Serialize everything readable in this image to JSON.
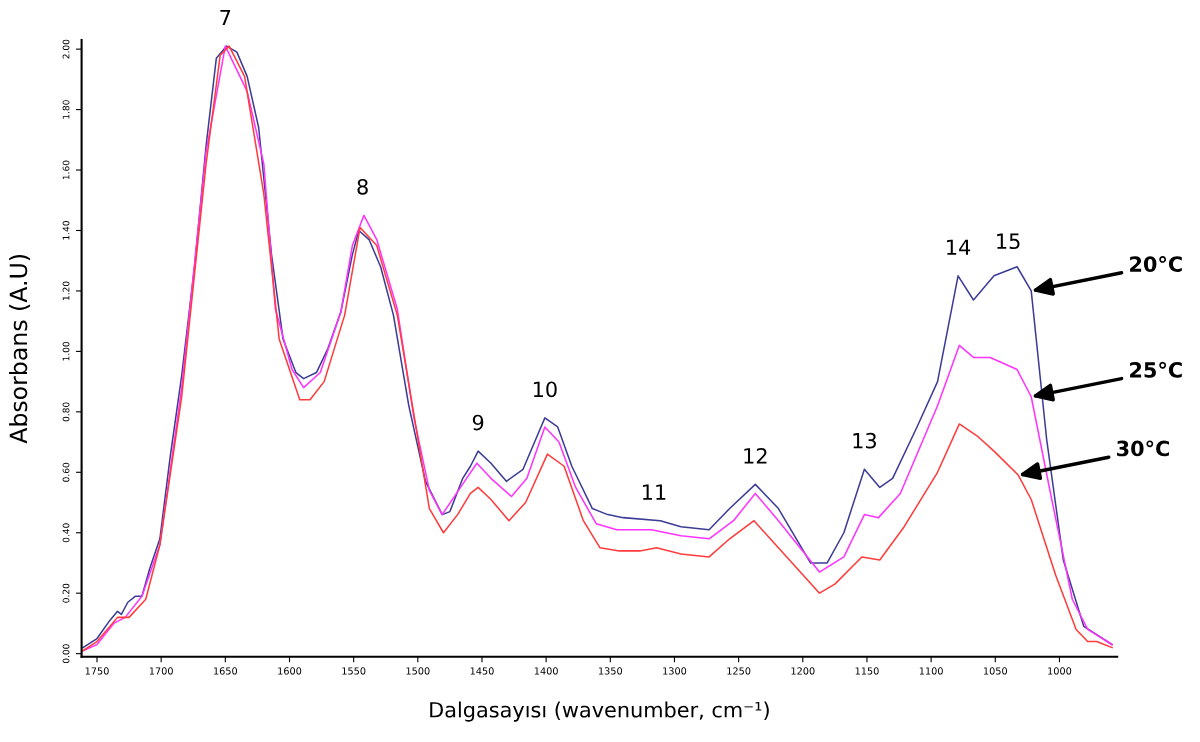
{
  "chart_data": {
    "type": "line",
    "xlabel": "Dalgasayısı (wavenumber, cm⁻¹)",
    "ylabel": "Absorbans (A.U)",
    "xlim": [
      1762,
      955
    ],
    "ylim": [
      -0.01,
      2.03
    ],
    "xticks": [
      1750,
      1700,
      1650,
      1600,
      1550,
      1500,
      1450,
      1400,
      1350,
      1300,
      1250,
      1200,
      1150,
      1100,
      1050,
      1000
    ],
    "yticks": [
      {
        "value": 0,
        "label": "0.00"
      },
      {
        "value": 0.2,
        "label": "0.20"
      },
      {
        "value": 0.4,
        "label": "0.40"
      },
      {
        "value": 0.6,
        "label": "0.60"
      },
      {
        "value": 0.8,
        "label": "0.80"
      },
      {
        "value": 1.0,
        "label": "1.00"
      },
      {
        "value": 1.2,
        "label": "1.20"
      },
      {
        "value": 1.4,
        "label": "1.40"
      },
      {
        "value": 1.6,
        "label": "1.60"
      },
      {
        "value": 1.8,
        "label": "1.80"
      },
      {
        "value": 2.0,
        "label": "2.00"
      }
    ],
    "grid": false,
    "legend": false,
    "marker": "none",
    "line_style": "solid",
    "series": [
      {
        "color": "#3c3c96",
        "x": [
          1761,
          1750,
          1740,
          1734,
          1731,
          1726,
          1720,
          1715,
          1709,
          1701,
          1693,
          1684,
          1674,
          1665,
          1657,
          1649,
          1641,
          1633,
          1624,
          1614,
          1605,
          1595,
          1589,
          1579,
          1570,
          1560,
          1551,
          1546,
          1538,
          1529,
          1519,
          1507,
          1494,
          1481,
          1475,
          1465,
          1459,
          1453,
          1443,
          1431,
          1418,
          1408,
          1401,
          1391,
          1380,
          1364,
          1352,
          1340,
          1311,
          1295,
          1273,
          1257,
          1237,
          1219,
          1194,
          1181,
          1168,
          1152,
          1140,
          1130,
          1111,
          1095,
          1079,
          1067,
          1051,
          1033,
          1022,
          1010,
          997,
          981,
          959
        ],
        "values": [
          0.02,
          0.05,
          0.11,
          0.14,
          0.13,
          0.17,
          0.19,
          0.19,
          0.28,
          0.38,
          0.65,
          0.92,
          1.28,
          1.68,
          1.97,
          2.01,
          1.99,
          1.91,
          1.74,
          1.32,
          1.04,
          0.93,
          0.91,
          0.93,
          1.01,
          1.13,
          1.32,
          1.4,
          1.37,
          1.28,
          1.12,
          0.82,
          0.57,
          0.46,
          0.47,
          0.58,
          0.62,
          0.67,
          0.63,
          0.57,
          0.61,
          0.71,
          0.78,
          0.75,
          0.62,
          0.48,
          0.46,
          0.45,
          0.44,
          0.42,
          0.41,
          0.48,
          0.56,
          0.48,
          0.3,
          0.3,
          0.4,
          0.61,
          0.55,
          0.58,
          0.75,
          0.9,
          1.25,
          1.17,
          1.25,
          1.28,
          1.2,
          0.71,
          0.31,
          0.09,
          0.03
        ]
      },
      {
        "color": "#ff33ff",
        "x": [
          1761,
          1750,
          1737,
          1728,
          1715,
          1701,
          1684,
          1665,
          1650,
          1633,
          1620,
          1611,
          1598,
          1589,
          1576,
          1560,
          1551,
          1542,
          1532,
          1516,
          1503,
          1491,
          1481,
          1462,
          1454,
          1443,
          1427,
          1415,
          1401,
          1390,
          1377,
          1361,
          1345,
          1327,
          1318,
          1295,
          1273,
          1254,
          1237,
          1219,
          1187,
          1168,
          1152,
          1141,
          1124,
          1095,
          1078,
          1067,
          1054,
          1033,
          1022,
          1006,
          990,
          978,
          959
        ],
        "values": [
          0.01,
          0.03,
          0.1,
          0.12,
          0.19,
          0.36,
          0.88,
          1.66,
          2.01,
          1.86,
          1.62,
          1.14,
          0.94,
          0.88,
          0.93,
          1.13,
          1.35,
          1.45,
          1.37,
          1.14,
          0.78,
          0.54,
          0.46,
          0.58,
          0.63,
          0.58,
          0.52,
          0.58,
          0.75,
          0.7,
          0.55,
          0.43,
          0.41,
          0.41,
          0.41,
          0.39,
          0.38,
          0.44,
          0.53,
          0.44,
          0.27,
          0.32,
          0.46,
          0.45,
          0.53,
          0.82,
          1.02,
          0.98,
          0.98,
          0.94,
          0.85,
          0.51,
          0.18,
          0.08,
          0.03
        ]
      },
      {
        "color": "#ff3b3b",
        "x": [
          1761,
          1750,
          1734,
          1725,
          1712,
          1701,
          1684,
          1665,
          1654,
          1647,
          1635,
          1620,
          1608,
          1592,
          1584,
          1573,
          1557,
          1545,
          1532,
          1516,
          1503,
          1491,
          1480,
          1469,
          1459,
          1453,
          1443,
          1429,
          1416,
          1399,
          1386,
          1371,
          1358,
          1343,
          1327,
          1314,
          1295,
          1273,
          1257,
          1238,
          1219,
          1187,
          1175,
          1154,
          1140,
          1121,
          1095,
          1078,
          1064,
          1051,
          1032,
          1022,
          1003,
          987,
          978,
          971,
          959
        ],
        "values": [
          0.01,
          0.04,
          0.12,
          0.12,
          0.18,
          0.36,
          0.85,
          1.62,
          1.98,
          2.01,
          1.91,
          1.52,
          1.04,
          0.84,
          0.84,
          0.9,
          1.12,
          1.41,
          1.35,
          1.12,
          0.79,
          0.48,
          0.4,
          0.46,
          0.53,
          0.55,
          0.51,
          0.44,
          0.5,
          0.66,
          0.62,
          0.44,
          0.35,
          0.34,
          0.34,
          0.35,
          0.33,
          0.32,
          0.38,
          0.44,
          0.35,
          0.2,
          0.23,
          0.32,
          0.31,
          0.42,
          0.6,
          0.76,
          0.72,
          0.67,
          0.59,
          0.51,
          0.26,
          0.08,
          0.04,
          0.04,
          0.02
        ]
      }
    ],
    "annotations": [
      {
        "text": "7",
        "x": 1650,
        "y": 2.01
      },
      {
        "text": "8",
        "x": 1543,
        "y": 1.45
      },
      {
        "text": "9",
        "x": 1453,
        "y": 0.67
      },
      {
        "text": "10",
        "x": 1401,
        "y": 0.78
      },
      {
        "text": "11",
        "x": 1316,
        "y": 0.44
      },
      {
        "text": "12",
        "x": 1237,
        "y": 0.56
      },
      {
        "text": "13",
        "x": 1152,
        "y": 0.61
      },
      {
        "text": "14",
        "x": 1079,
        "y": 1.25
      },
      {
        "text": "15",
        "x": 1040,
        "y": 1.27
      },
      {
        "text": "20°C",
        "x": 1022,
        "y": 1.2
      },
      {
        "text": "25°C",
        "x": 1022,
        "y": 0.85
      },
      {
        "text": "30°C",
        "x": 1032,
        "y": 0.59
      }
    ]
  }
}
